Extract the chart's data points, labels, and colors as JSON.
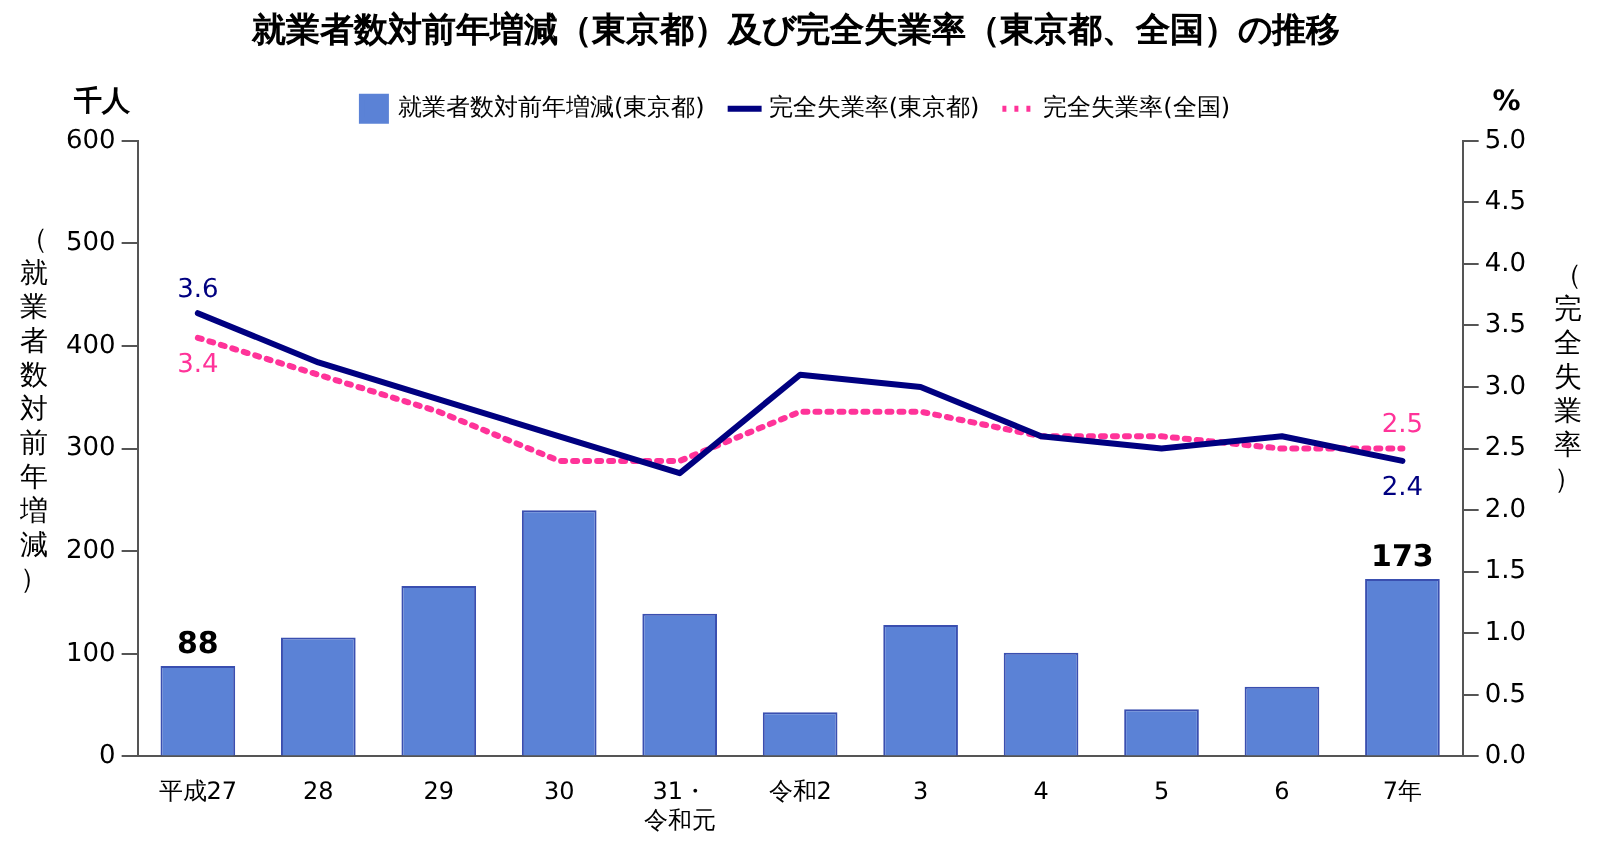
{
  "chart_data": {
    "type": "bar",
    "title": "就業者数対前年増減（東京都）及び完全失業率（東京都、全国）の推移",
    "categories": [
      "平成27",
      "28",
      "29",
      "30",
      "31・令和元",
      "令和2",
      "3",
      "4",
      "5",
      "6",
      "7年"
    ],
    "ylabel": "（就業者数対前年増減）",
    "y2label": "（完全失業率）",
    "annotations": [
      "千人",
      "%"
    ],
    "series": [
      {
        "name": "就業者数対前年増減(東京都)",
        "color": "#5b82d6",
        "values": [
          88,
          116,
          166,
          240,
          139,
          43,
          128,
          101,
          46,
          68,
          173
        ],
        "value_labels": [
          "88",
          null,
          null,
          null,
          null,
          null,
          null,
          null,
          null,
          null,
          "173"
        ]
      },
      {
        "name": "完全失業率(東京都)",
        "type": "line",
        "axis": "y2",
        "color": "#000080",
        "line_style": "solid",
        "values": [
          3.6,
          3.2,
          2.9,
          2.6,
          2.3,
          3.1,
          3.0,
          2.6,
          2.5,
          2.6,
          2.4
        ],
        "value_labels": [
          "3.6",
          null,
          null,
          null,
          null,
          null,
          null,
          null,
          null,
          null,
          "2.4"
        ]
      },
      {
        "name": "完全失業率(全国)",
        "type": "line",
        "axis": "y2",
        "color": "#ff3399",
        "line_style": "dotted",
        "values": [
          3.4,
          3.1,
          2.8,
          2.4,
          2.4,
          2.8,
          2.8,
          2.6,
          2.6,
          2.5,
          2.5
        ],
        "value_labels": [
          "3.4",
          null,
          null,
          null,
          null,
          null,
          null,
          null,
          null,
          null,
          "2.5"
        ]
      }
    ],
    "ylim": [
      0,
      600
    ],
    "yticks": [
      0,
      100,
      200,
      300,
      400,
      500,
      600
    ],
    "y2lim": [
      0,
      5
    ],
    "y2ticks": [
      {
        "value": 0,
        "label": "0.0"
      },
      {
        "value": 0.5,
        "label": "0.5"
      },
      {
        "value": 1,
        "label": "1.0"
      },
      {
        "value": 1.5,
        "label": "1.5"
      },
      {
        "value": 2,
        "label": "2.0"
      },
      {
        "value": 2.5,
        "label": "2.5"
      },
      {
        "value": 3,
        "label": "3.0"
      },
      {
        "value": 3.5,
        "label": "3.5"
      },
      {
        "value": 4,
        "label": "4.0"
      },
      {
        "value": 4.5,
        "label": "4.5"
      },
      {
        "value": 5,
        "label": "5.0"
      }
    ],
    "grid": false,
    "legend": "top",
    "marker": "none"
  }
}
